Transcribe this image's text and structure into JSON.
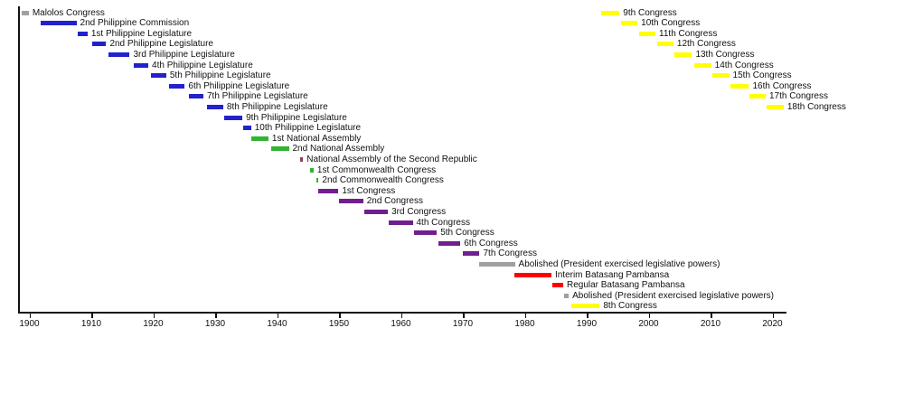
{
  "chart_data": {
    "type": "bar",
    "subtype": "gantt-timeline",
    "title": "",
    "xlabel": "",
    "ylabel": "",
    "grid": false,
    "legend": "none",
    "x_axis": {
      "tick_years": [
        1900,
        1910,
        1920,
        1930,
        1940,
        1950,
        1960,
        1970,
        1980,
        1990,
        2000,
        2010,
        2020
      ],
      "range": [
        1898.3,
        2023.9
      ]
    },
    "colors": {
      "gray": "#A0A0A0",
      "blue": "#2222CC",
      "green": "#33B333",
      "maroon": "#93415A",
      "purple": "#711F8E",
      "red": "#FF0000",
      "yellow": "#FFFF00"
    },
    "rows": [
      {
        "row": 1,
        "label": "Malolos Congress",
        "start": 1898.7,
        "end": 1899.9,
        "color": "gray"
      },
      {
        "row": 2,
        "label": "2nd Philippine Commission",
        "start": 1901.8,
        "end": 1907.6,
        "color": "blue"
      },
      {
        "row": 3,
        "label": "1st Philippine Legislature",
        "start": 1907.8,
        "end": 1909.4,
        "color": "blue"
      },
      {
        "row": 4,
        "label": "2nd Philippine Legislature",
        "start": 1910.2,
        "end": 1912.4,
        "color": "blue"
      },
      {
        "row": 5,
        "label": "3rd Philippine Legislature",
        "start": 1912.8,
        "end": 1916.2,
        "color": "blue"
      },
      {
        "row": 6,
        "label": "4th Philippine Legislature",
        "start": 1916.8,
        "end": 1919.2,
        "color": "blue"
      },
      {
        "row": 7,
        "label": "5th Philippine Legislature",
        "start": 1919.6,
        "end": 1922.1,
        "color": "blue"
      },
      {
        "row": 8,
        "label": "6th Philippine Legislature",
        "start": 1922.5,
        "end": 1925.1,
        "color": "blue"
      },
      {
        "row": 9,
        "label": "7th Philippine Legislature",
        "start": 1925.7,
        "end": 1928.1,
        "color": "blue"
      },
      {
        "row": 10,
        "label": "8th Philippine Legislature",
        "start": 1928.7,
        "end": 1931.3,
        "color": "blue"
      },
      {
        "row": 11,
        "label": "9th Philippine Legislature",
        "start": 1931.5,
        "end": 1934.4,
        "color": "blue"
      },
      {
        "row": 12,
        "label": "10th Philippine Legislature",
        "start": 1934.5,
        "end": 1935.8,
        "color": "blue"
      },
      {
        "row": 13,
        "label": "1st National Assembly",
        "start": 1935.9,
        "end": 1938.6,
        "color": "green"
      },
      {
        "row": 14,
        "label": "2nd National Assembly",
        "start": 1939.1,
        "end": 1941.9,
        "color": "green"
      },
      {
        "row": 15,
        "label": "National Assembly of the Second Republic",
        "start": 1943.7,
        "end": 1944.2,
        "color": "maroon"
      },
      {
        "row": 16,
        "label": "1st Commonwealth Congress",
        "start": 1945.3,
        "end": 1945.9,
        "color": "green"
      },
      {
        "row": 17,
        "label": "2nd Commonwealth Congress",
        "start": 1946.4,
        "end": 1946.7,
        "color": "green"
      },
      {
        "row": 18,
        "label": "1st Congress",
        "start": 1946.6,
        "end": 1949.9,
        "color": "purple"
      },
      {
        "row": 19,
        "label": "2nd Congress",
        "start": 1950.0,
        "end": 1953.9,
        "color": "purple"
      },
      {
        "row": 20,
        "label": "3rd Congress",
        "start": 1954.1,
        "end": 1957.9,
        "color": "purple"
      },
      {
        "row": 21,
        "label": "4th Congress",
        "start": 1958.1,
        "end": 1961.9,
        "color": "purple"
      },
      {
        "row": 22,
        "label": "5th Congress",
        "start": 1962.1,
        "end": 1965.8,
        "color": "purple"
      },
      {
        "row": 23,
        "label": "6th Congress",
        "start": 1966.1,
        "end": 1969.6,
        "color": "purple"
      },
      {
        "row": 24,
        "label": "7th Congress",
        "start": 1970.0,
        "end": 1972.7,
        "color": "purple"
      },
      {
        "row": 25,
        "label": "Abolished (President exercised legislative powers)",
        "start": 1972.7,
        "end": 1978.4,
        "color": "gray"
      },
      {
        "row": 26,
        "label": "Interim Batasang Pambansa",
        "start": 1978.3,
        "end": 1984.3,
        "color": "red"
      },
      {
        "row": 27,
        "label": "Regular Batasang Pambansa",
        "start": 1984.5,
        "end": 1986.2,
        "color": "red"
      },
      {
        "row": 28,
        "label": "Abolished (President exercised legislative powers)",
        "start": 1986.3,
        "end": 1987.1,
        "color": "gray"
      },
      {
        "row": 29,
        "label": "8th Congress",
        "start": 1987.5,
        "end": 1992.1,
        "color": "yellow"
      },
      {
        "row": 1,
        "label": "9th Congress",
        "start": 1992.4,
        "end": 1995.3,
        "color": "yellow"
      },
      {
        "row": 2,
        "label": "10th Congress",
        "start": 1995.5,
        "end": 1998.2,
        "color": "yellow"
      },
      {
        "row": 3,
        "label": "11th Congress",
        "start": 1998.4,
        "end": 2001.1,
        "color": "yellow"
      },
      {
        "row": 4,
        "label": "12th Congress",
        "start": 2001.4,
        "end": 2004.0,
        "color": "yellow"
      },
      {
        "row": 5,
        "label": "13th Congress",
        "start": 2004.2,
        "end": 2007.0,
        "color": "yellow"
      },
      {
        "row": 6,
        "label": "14th Congress",
        "start": 2007.4,
        "end": 2010.1,
        "color": "yellow"
      },
      {
        "row": 7,
        "label": "15th Congress",
        "start": 2010.3,
        "end": 2013.0,
        "color": "yellow"
      },
      {
        "row": 8,
        "label": "16th Congress",
        "start": 2013.2,
        "end": 2016.2,
        "color": "yellow"
      },
      {
        "row": 9,
        "label": "17th Congress",
        "start": 2016.3,
        "end": 2018.9,
        "color": "yellow"
      },
      {
        "row": 10,
        "label": "18th Congress",
        "start": 2019.1,
        "end": 2021.8,
        "color": "yellow"
      }
    ]
  }
}
